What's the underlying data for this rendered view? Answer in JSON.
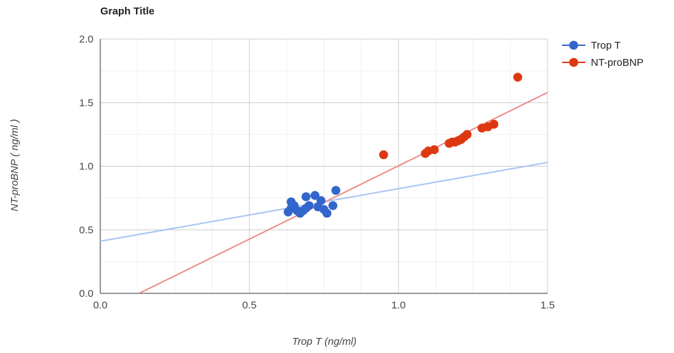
{
  "chart_data": {
    "type": "scatter",
    "title": "Graph Title",
    "xlabel": "Trop T (ng/ml)",
    "ylabel": "NT-proBNP ( ng/ml )",
    "xlim": [
      0,
      1.5
    ],
    "ylim": [
      0,
      2
    ],
    "xticks": [
      "0.0",
      "0.5",
      "1.0",
      "1.5"
    ],
    "yticks": [
      "0.0",
      "0.5",
      "1.0",
      "1.5",
      "2.0"
    ],
    "grid": true,
    "legend_position": "right",
    "series": [
      {
        "name": "Trop T",
        "color": "#3366cc",
        "trendline_color": "#a8c4f0",
        "trendline": [
          [
            0,
            0.41
          ],
          [
            1.5,
            1.03
          ]
        ],
        "points": [
          [
            0.63,
            0.64
          ],
          [
            0.64,
            0.67
          ],
          [
            0.64,
            0.72
          ],
          [
            0.65,
            0.69
          ],
          [
            0.66,
            0.65
          ],
          [
            0.67,
            0.63
          ],
          [
            0.68,
            0.65
          ],
          [
            0.69,
            0.67
          ],
          [
            0.69,
            0.76
          ],
          [
            0.7,
            0.69
          ],
          [
            0.72,
            0.77
          ],
          [
            0.73,
            0.68
          ],
          [
            0.74,
            0.73
          ],
          [
            0.75,
            0.66
          ],
          [
            0.76,
            0.63
          ],
          [
            0.78,
            0.69
          ],
          [
            0.79,
            0.81
          ]
        ]
      },
      {
        "name": "NT-proBNP",
        "color": "#dc3912",
        "trendline_color": "#ef8a8a",
        "trendline": [
          [
            0.13,
            0
          ],
          [
            1.5,
            1.58
          ]
        ],
        "points": [
          [
            0.95,
            1.09
          ],
          [
            1.09,
            1.1
          ],
          [
            1.1,
            1.12
          ],
          [
            1.12,
            1.13
          ],
          [
            1.17,
            1.18
          ],
          [
            1.18,
            1.19
          ],
          [
            1.19,
            1.19
          ],
          [
            1.2,
            1.2
          ],
          [
            1.21,
            1.21
          ],
          [
            1.22,
            1.23
          ],
          [
            1.23,
            1.25
          ],
          [
            1.28,
            1.3
          ],
          [
            1.3,
            1.31
          ],
          [
            1.32,
            1.33
          ],
          [
            1.4,
            1.7
          ]
        ]
      }
    ]
  }
}
